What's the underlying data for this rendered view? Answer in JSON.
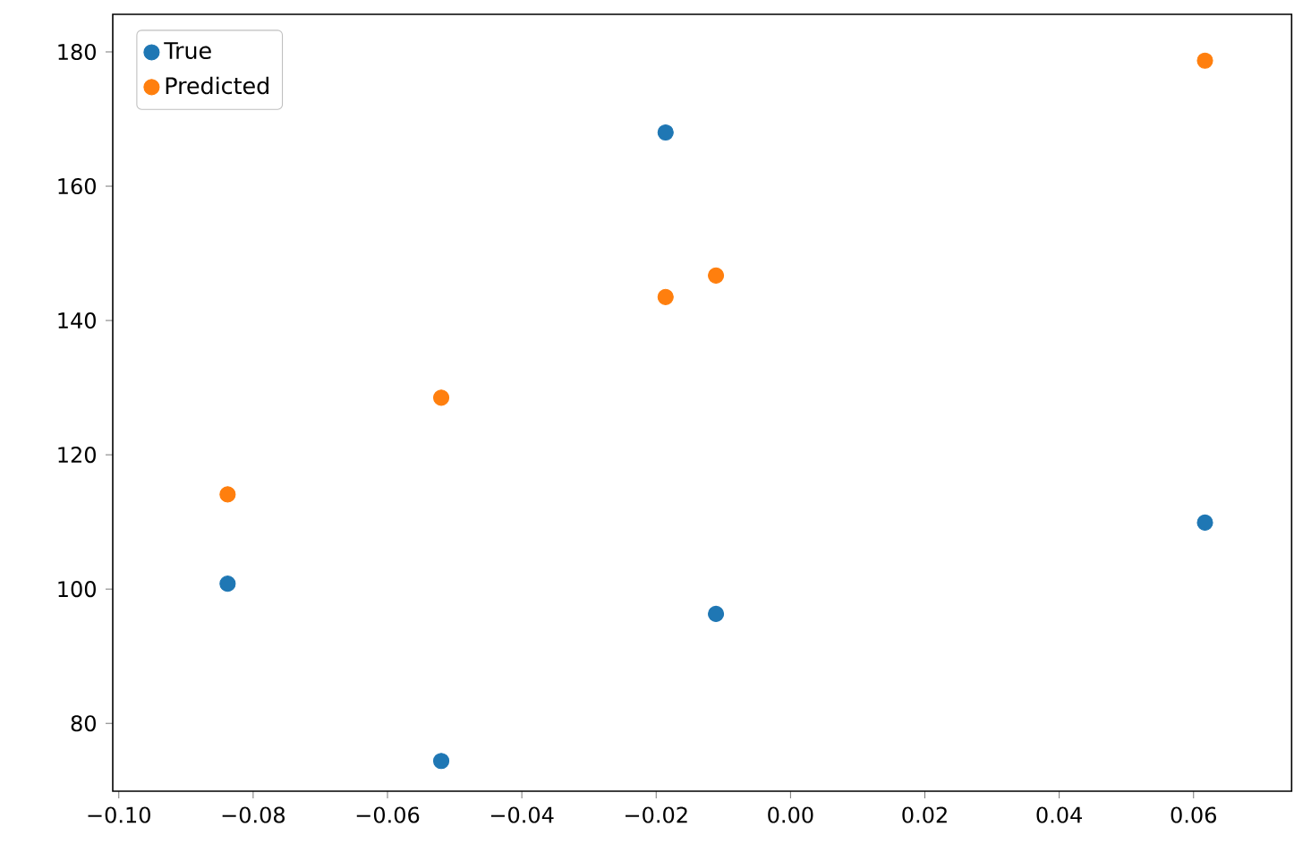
{
  "chart_data": {
    "type": "scatter",
    "marker": "circle",
    "legend": "top left",
    "grid": false,
    "xlim": [
      -0.1009,
      0.0746
    ],
    "ylim": [
      69.9,
      185.6
    ],
    "xticks": [
      {
        "value": -0.1,
        "label": "−0.10"
      },
      {
        "value": -0.08,
        "label": "−0.08"
      },
      {
        "value": -0.06,
        "label": "−0.06"
      },
      {
        "value": -0.04,
        "label": "−0.04"
      },
      {
        "value": -0.02,
        "label": "−0.02"
      },
      {
        "value": 0.0,
        "label": "0.00"
      },
      {
        "value": 0.02,
        "label": "0.02"
      },
      {
        "value": 0.04,
        "label": "0.04"
      },
      {
        "value": 0.06,
        "label": "0.06"
      }
    ],
    "yticks": [
      80,
      100,
      120,
      140,
      160,
      180
    ],
    "x": [
      -0.0838,
      -0.052,
      -0.0186,
      -0.0111,
      0.0617
    ],
    "series": [
      {
        "name": "True",
        "color": "#1f77b4",
        "values": [
          100.8,
          74.4,
          168.0,
          96.3,
          109.9
        ]
      },
      {
        "name": "Predicted",
        "color": "#ff7f0e",
        "values": [
          114.1,
          128.5,
          143.5,
          146.7,
          178.7
        ]
      }
    ]
  }
}
